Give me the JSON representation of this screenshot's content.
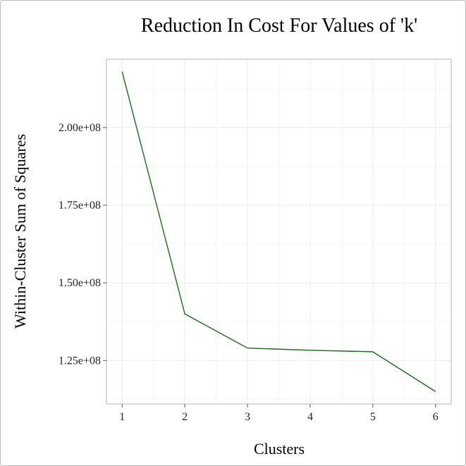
{
  "chart_data": {
    "type": "line",
    "title": "Reduction In Cost For Values of 'k'",
    "xlabel": "Clusters",
    "ylabel": "Within-Cluster Sum of Squares",
    "x": [
      1,
      2,
      3,
      4,
      5,
      6
    ],
    "y": [
      218000000,
      140000000,
      129000000,
      128300000,
      127800000,
      115000000
    ],
    "xticks": [
      1,
      2,
      3,
      4,
      5,
      6
    ],
    "xtick_labels": [
      "1",
      "2",
      "3",
      "4",
      "5",
      "6"
    ],
    "yticks": [
      125000000,
      150000000,
      175000000,
      200000000
    ],
    "ytick_labels": [
      "1.25e+08",
      "1.50e+08",
      "1.75e+08",
      "2.00e+08"
    ],
    "xlim": [
      0.75,
      6.25
    ],
    "ylim": [
      111000000,
      222000000
    ],
    "grid": true,
    "line_color": "#1a6b1a"
  }
}
